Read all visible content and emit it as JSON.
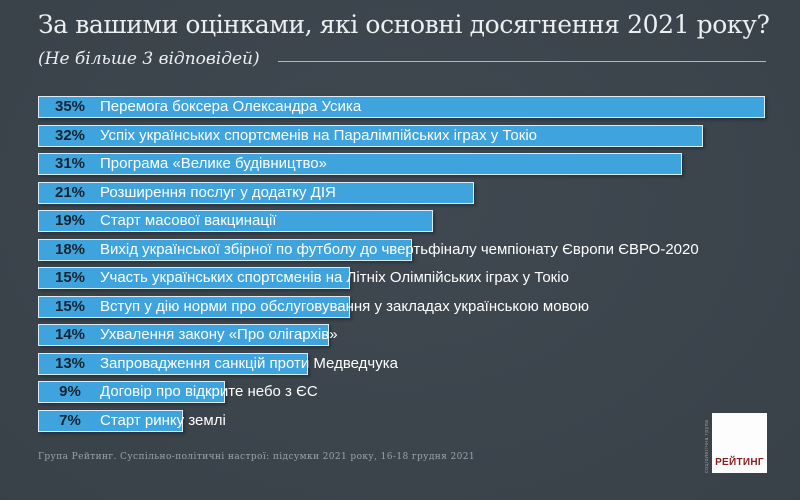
{
  "header": {
    "title": "За вашими оцінками, які основні досягнення 2021 року?",
    "subtitle": "(Не більше 3 відповідей)"
  },
  "chart_data": {
    "type": "bar",
    "orientation": "horizontal",
    "title": "За вашими оцінками, які основні досягнення 2021 року?",
    "subtitle": "(Не більше 3 відповідей)",
    "unit": "%",
    "xlim": [
      0,
      35
    ],
    "grid": false,
    "legend": "none",
    "bar_color": "#3fa4de",
    "categories": [
      "Перемога боксера Олександра Усика",
      "Успіх українських спортсменів на Паралімпійських іграх у Токіо",
      "Програма «Велике будівництво»",
      "Розширення послуг у додатку ДІЯ",
      "Старт масової вакцинації",
      "Вихід української збірної по футболу до чвертьфіналу чемпіонату Європи ЄВРО-2020",
      "Участь українських спортсменів на Літніх Олімпійських іграх у Токіо",
      "Вступ у дію норми про обслуговування у закладах українською мовою",
      "Ухвалення закону «Про олігархів»",
      "Запровадження санкцій проти Медведчука",
      "Договір про відкрите небо з ЄС",
      "Старт ринку землі"
    ],
    "values": [
      35,
      32,
      31,
      21,
      19,
      18,
      15,
      15,
      14,
      13,
      9,
      7
    ]
  },
  "footer": {
    "source": "Група Рейтинг. Суспільно-політичні настрої: підсумки 2021 року, 16-18 грудня 2021"
  },
  "logo": {
    "brand": "РЕЙТИНГ",
    "tagline": "соціологічна група",
    "brand_color": "#8b1d1d"
  },
  "colors": {
    "background": "#3c454d",
    "bar": "#3fa4de",
    "value_text": "#152330",
    "label_text": "#ffffff",
    "title_text": "#eceff1",
    "footer_text": "#98a3aa"
  }
}
